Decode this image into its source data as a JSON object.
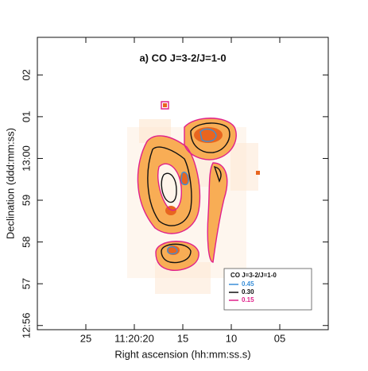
{
  "chart_data": {
    "type": "contour",
    "title": "a) CO J=3-2/J=1-0",
    "x_label": "Right ascension (hh:mm:ss.s)",
    "y_label": "Declination (ddd:mm:ss)",
    "xlim": [
      30,
      0
    ],
    "ylim": [
      55.9,
      62.9
    ],
    "xticks": [
      25,
      {
        "value": 20,
        "label": "11:20:20"
      },
      15,
      10,
      {
        "value": 5,
        "label": "05"
      }
    ],
    "yticks": [
      {
        "value": 56,
        "label": "12:56"
      },
      57,
      58,
      59,
      {
        "value": 60,
        "label": "13:00"
      },
      {
        "value": 61,
        "label": "01"
      },
      {
        "value": 62,
        "label": "02"
      }
    ],
    "legend_title": "CO J=3-2/J=1-0",
    "levels": [
      {
        "value": 0.45,
        "label": "0.45",
        "color": "#3a8fd8"
      },
      {
        "value": 0.3,
        "label": "0.30",
        "color": "#111111"
      },
      {
        "value": 0.15,
        "label": "0.15",
        "color": "#e0208a"
      }
    ]
  }
}
